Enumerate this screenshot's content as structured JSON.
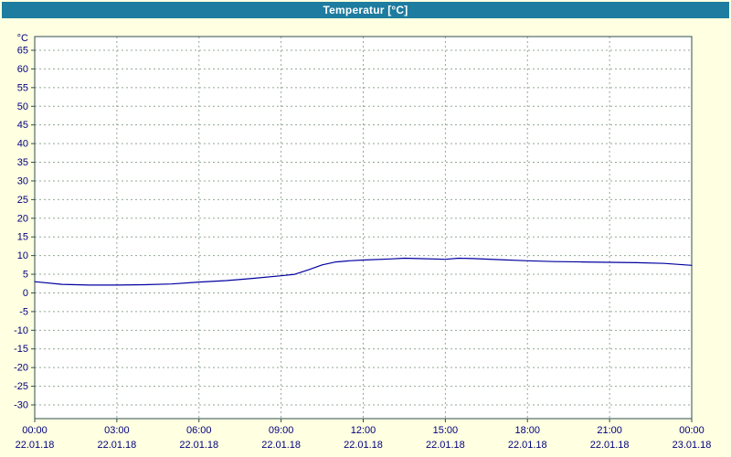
{
  "header": {
    "title": "Temperatur [°C]"
  },
  "colors": {
    "titlebar_bg": "#1d7c9f",
    "background": "#ffffe1",
    "plot_background": "#ffffff",
    "plot_border": "#2f4f4f",
    "grid": "#94a894",
    "axis_text": "#000080",
    "line": "#0000a0"
  },
  "chart_data": {
    "type": "line",
    "title": "Temperatur [°C]",
    "xlabel": "",
    "ylabel": "°C",
    "ylim": [
      -30,
      65
    ],
    "y_tick_step": 5,
    "y_ticks": [
      65,
      60,
      55,
      50,
      45,
      40,
      35,
      30,
      25,
      20,
      15,
      10,
      5,
      0,
      -5,
      -10,
      -15,
      -20,
      -25,
      -30
    ],
    "x_ticks": [
      {
        "hour": 0,
        "time": "00:00",
        "date": "22.01.18"
      },
      {
        "hour": 3,
        "time": "03:00",
        "date": "22.01.18"
      },
      {
        "hour": 6,
        "time": "06:00",
        "date": "22.01.18"
      },
      {
        "hour": 9,
        "time": "09:00",
        "date": "22.01.18"
      },
      {
        "hour": 12,
        "time": "12:00",
        "date": "22.01.18"
      },
      {
        "hour": 15,
        "time": "15:00",
        "date": "22.01.18"
      },
      {
        "hour": 18,
        "time": "18:00",
        "date": "22.01.18"
      },
      {
        "hour": 21,
        "time": "21:00",
        "date": "22.01.18"
      },
      {
        "hour": 24,
        "time": "00:00",
        "date": "23.01.18"
      }
    ],
    "grid": true,
    "legend": false,
    "series": [
      {
        "name": "Temperatur",
        "color": "#0000a0",
        "x_hours": [
          0,
          1,
          2,
          3,
          4,
          5,
          6,
          7,
          8,
          9,
          9.5,
          10,
          10.5,
          11,
          11.5,
          12,
          13,
          13.5,
          14,
          15,
          15.5,
          16,
          17,
          18,
          19,
          20,
          21,
          22,
          23,
          24
        ],
        "values": [
          3.0,
          2.3,
          2.1,
          2.1,
          2.2,
          2.4,
          2.9,
          3.3,
          3.9,
          4.6,
          5.0,
          6.2,
          7.5,
          8.3,
          8.6,
          8.8,
          9.1,
          9.3,
          9.2,
          9.0,
          9.3,
          9.2,
          8.9,
          8.6,
          8.4,
          8.3,
          8.2,
          8.1,
          7.9,
          7.4
        ]
      }
    ]
  }
}
